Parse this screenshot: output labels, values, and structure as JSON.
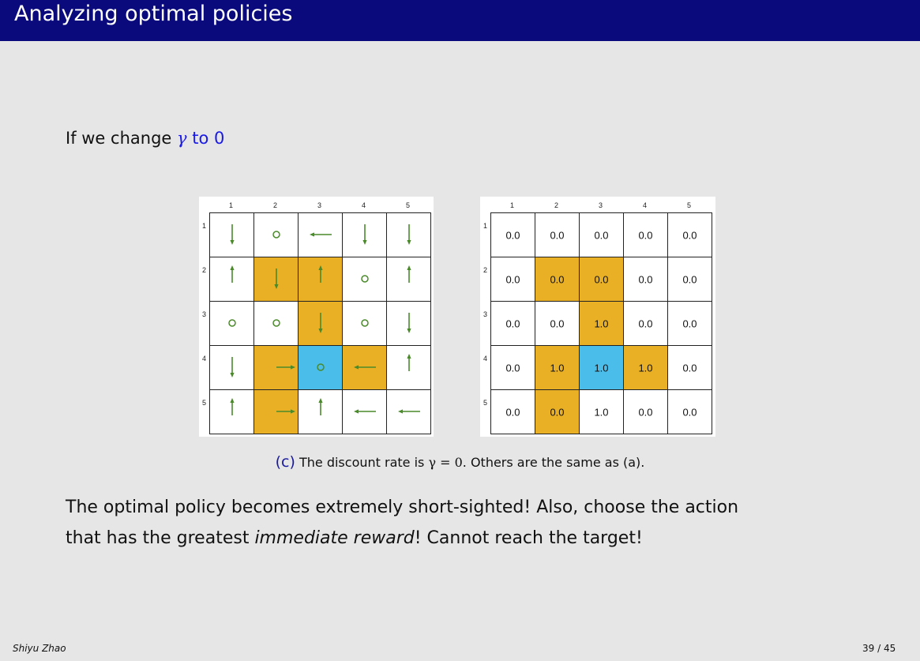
{
  "header": {
    "title": "Analyzing optimal policies"
  },
  "intro": {
    "prefix": "If we change ",
    "gamma_symbol": "γ",
    "suffix": "to 0"
  },
  "figure": {
    "column_labels": [
      "1",
      "2",
      "3",
      "4",
      "5"
    ],
    "row_labels": [
      "1",
      "2",
      "3",
      "4",
      "5"
    ],
    "colors": {
      "forbidden": "#eab025",
      "target": "#4bbdeb",
      "arrow": "#4a8a2a"
    },
    "cell_types": [
      [
        "normal",
        "normal",
        "normal",
        "normal",
        "normal"
      ],
      [
        "normal",
        "forbidden",
        "forbidden",
        "normal",
        "normal"
      ],
      [
        "normal",
        "normal",
        "forbidden",
        "normal",
        "normal"
      ],
      [
        "normal",
        "forbidden",
        "target",
        "forbidden",
        "normal"
      ],
      [
        "normal",
        "forbidden",
        "normal",
        "normal",
        "normal"
      ]
    ],
    "policy": [
      [
        "down",
        "stay",
        "left",
        "down",
        "down"
      ],
      [
        "up",
        "down",
        "up",
        "stay",
        "up"
      ],
      [
        "stay",
        "stay",
        "down",
        "stay",
        "down"
      ],
      [
        "down",
        "right",
        "stay",
        "left",
        "up"
      ],
      [
        "up",
        "right",
        "up",
        "left",
        "left"
      ]
    ],
    "state_values": [
      [
        "0.0",
        "0.0",
        "0.0",
        "0.0",
        "0.0"
      ],
      [
        "0.0",
        "0.0",
        "0.0",
        "0.0",
        "0.0"
      ],
      [
        "0.0",
        "0.0",
        "1.0",
        "0.0",
        "0.0"
      ],
      [
        "0.0",
        "1.0",
        "1.0",
        "1.0",
        "0.0"
      ],
      [
        "0.0",
        "0.0",
        "1.0",
        "0.0",
        "0.0"
      ]
    ]
  },
  "caption": {
    "label": "(c)",
    "text_before": "The discount rate is ",
    "math": "γ = 0",
    "text_after": ". Others are the same as (a)."
  },
  "body": {
    "line1": "The optimal policy becomes extremely short-sighted! Also, choose the action",
    "line2_before": "that has the greatest ",
    "line2_emphasis": "immediate reward",
    "line2_after": "! Cannot reach the target!"
  },
  "footer": {
    "author": "Shiyu Zhao",
    "page": "39 / 45"
  }
}
